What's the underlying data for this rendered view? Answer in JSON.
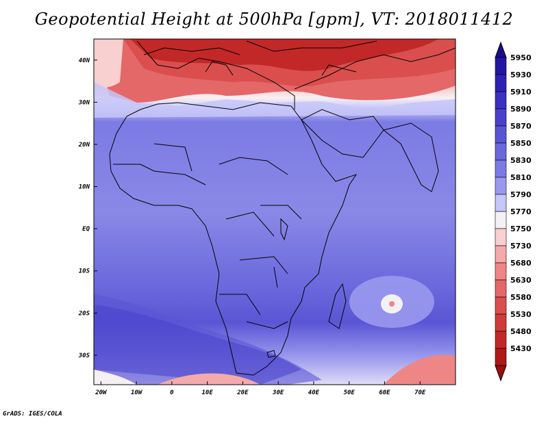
{
  "title": "Geopotential Height at 500hPa [gpm], VT: 2018011412",
  "credit": "GrADS: IGES/COLA",
  "axes": {
    "lon_ticks": [
      {
        "label": "20W",
        "value": -20
      },
      {
        "label": "10W",
        "value": -10
      },
      {
        "label": "0",
        "value": 0
      },
      {
        "label": "10E",
        "value": 10
      },
      {
        "label": "20E",
        "value": 20
      },
      {
        "label": "30E",
        "value": 30
      },
      {
        "label": "40E",
        "value": 40
      },
      {
        "label": "50E",
        "value": 50
      },
      {
        "label": "60E",
        "value": 60
      },
      {
        "label": "70E",
        "value": 70
      }
    ],
    "lat_ticks": [
      {
        "label": "40N",
        "value": 40
      },
      {
        "label": "30N",
        "value": 30
      },
      {
        "label": "20N",
        "value": 20
      },
      {
        "label": "10N",
        "value": 10
      },
      {
        "label": "EQ",
        "value": 0
      },
      {
        "label": "10S",
        "value": -10
      },
      {
        "label": "20S",
        "value": -20
      },
      {
        "label": "30S",
        "value": -30
      }
    ],
    "lon_range": [
      -22,
      80
    ],
    "lat_range": [
      -37,
      45
    ]
  },
  "colorbar": {
    "levels": [
      {
        "label": "5950",
        "color": "#2416a4"
      },
      {
        "label": "5930",
        "color": "#2d22b4"
      },
      {
        "label": "5910",
        "color": "#3a30c2"
      },
      {
        "label": "5890",
        "color": "#4941cc"
      },
      {
        "label": "5870",
        "color": "#5a55d4"
      },
      {
        "label": "5850",
        "color": "#6a68dc"
      },
      {
        "label": "5830",
        "color": "#7c7be4"
      },
      {
        "label": "5810",
        "color": "#9a99ee"
      },
      {
        "label": "5790",
        "color": "#c6c6f8"
      },
      {
        "label": "5770",
        "color": "#f4f0f4"
      },
      {
        "label": "5750",
        "color": "#f8d0d0"
      },
      {
        "label": "5730",
        "color": "#f4aaaa"
      },
      {
        "label": "5680",
        "color": "#ee8686"
      },
      {
        "label": "5630",
        "color": "#e46868"
      },
      {
        "label": "5580",
        "color": "#da4e4e"
      },
      {
        "label": "5530",
        "color": "#d03a3a"
      },
      {
        "label": "5480",
        "color": "#c22828"
      },
      {
        "label": "5430",
        "color": "#b01818"
      }
    ],
    "top_arrow_color": "#1a0d8c",
    "bottom_arrow_color": "#a00c0c"
  }
}
